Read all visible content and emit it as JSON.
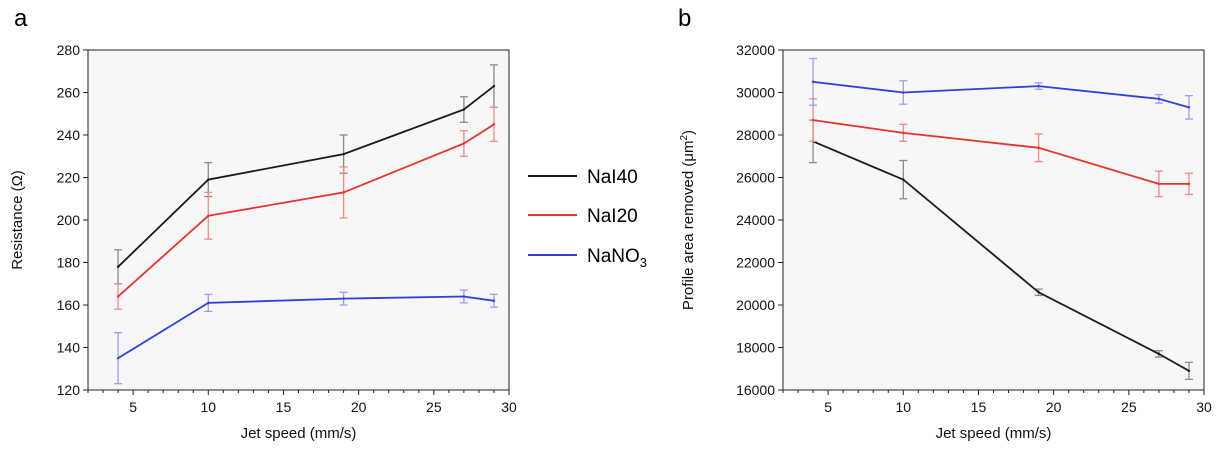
{
  "panel_labels": {
    "a": "a",
    "b": "b"
  },
  "legend": {
    "items": [
      {
        "label": "NaI40",
        "color": "#1a1a1a"
      },
      {
        "label": "NaI20",
        "color": "#e8322e"
      },
      {
        "label": "NaNO",
        "sub": "3",
        "color": "#2f3fe0"
      }
    ]
  },
  "chart_data": [
    {
      "type": "line",
      "panel": "a",
      "xlabel": "Jet speed (mm/s)",
      "ylabel": "Resistance (Ω)",
      "xlim": [
        2,
        30
      ],
      "ylim": [
        120,
        280
      ],
      "xticks": [
        5,
        10,
        15,
        20,
        25,
        30
      ],
      "yticks": [
        120,
        140,
        160,
        180,
        200,
        220,
        240,
        260,
        280
      ],
      "x": [
        4,
        10,
        19,
        27,
        29
      ],
      "series": [
        {
          "name": "NaI40",
          "color": "#1a1a1a",
          "errcolor": "#8a8a8a",
          "values": [
            178,
            219,
            231,
            252,
            263
          ],
          "errors": [
            8,
            8,
            9,
            6,
            10
          ]
        },
        {
          "name": "NaI20",
          "color": "#e8322e",
          "errcolor": "#f08a86",
          "values": [
            164,
            202,
            213,
            236,
            245
          ],
          "errors": [
            6,
            11,
            12,
            6,
            8
          ]
        },
        {
          "name": "NaNO3",
          "color": "#2f3fe0",
          "errcolor": "#9a9ff0",
          "values": [
            135,
            161,
            163,
            164,
            162
          ],
          "errors": [
            12,
            4,
            3,
            3,
            3
          ]
        }
      ]
    },
    {
      "type": "line",
      "panel": "b",
      "xlabel": "Jet speed (mm/s)",
      "ylabel": "Profile area removed (μm",
      "ylabel_sup": "2",
      "ylabel_tail": ")",
      "xlim": [
        2,
        30
      ],
      "ylim": [
        16000,
        32000
      ],
      "xticks": [
        5,
        10,
        15,
        20,
        25,
        30
      ],
      "yticks": [
        16000,
        18000,
        20000,
        22000,
        24000,
        26000,
        28000,
        30000,
        32000
      ],
      "x": [
        4,
        10,
        19,
        27,
        29
      ],
      "series": [
        {
          "name": "NaI40",
          "color": "#1a1a1a",
          "errcolor": "#8a8a8a",
          "values": [
            27700,
            25900,
            20600,
            17700,
            16900
          ],
          "errors": [
            1000,
            900,
            150,
            150,
            400
          ]
        },
        {
          "name": "NaI20",
          "color": "#e8322e",
          "errcolor": "#f08a86",
          "values": [
            28700,
            28100,
            27400,
            25700,
            25700
          ],
          "errors": [
            1000,
            400,
            650,
            600,
            500
          ]
        },
        {
          "name": "NaNO3",
          "color": "#2f3fe0",
          "errcolor": "#9a9ff0",
          "values": [
            30500,
            30000,
            30300,
            29700,
            29300
          ],
          "errors": [
            1100,
            550,
            150,
            200,
            550
          ]
        }
      ]
    }
  ]
}
